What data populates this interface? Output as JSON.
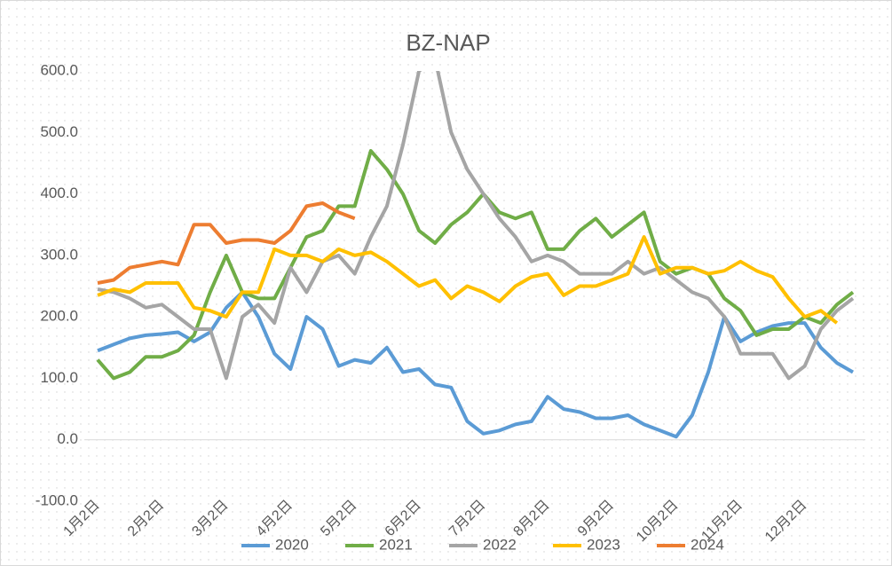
{
  "chart_data": {
    "type": "line",
    "title": "BZ-NAP",
    "categories": [
      "1月2日",
      null,
      null,
      null,
      "2月2日",
      null,
      null,
      null,
      "3月2日",
      null,
      null,
      null,
      "4月2日",
      null,
      null,
      null,
      "5月2日",
      null,
      null,
      null,
      "6月2日",
      null,
      null,
      null,
      "7月2日",
      null,
      null,
      null,
      "8月2日",
      null,
      null,
      null,
      "9月2日",
      null,
      null,
      null,
      "10月2日",
      null,
      null,
      null,
      "11月2日",
      null,
      null,
      null,
      "12月2日",
      null,
      null,
      null
    ],
    "series": [
      {
        "name": "2020",
        "color": "#5b9bd5",
        "values": [
          145,
          155,
          165,
          170,
          172,
          175,
          160,
          175,
          215,
          240,
          200,
          140,
          115,
          200,
          180,
          120,
          130,
          125,
          150,
          110,
          115,
          90,
          85,
          30,
          10,
          15,
          25,
          30,
          70,
          50,
          45,
          35,
          35,
          40,
          25,
          15,
          5,
          40,
          110,
          200,
          160,
          175,
          185,
          190,
          190,
          150,
          125,
          110
        ]
      },
      {
        "name": "2021",
        "color": "#70ad47",
        "values": [
          130,
          100,
          110,
          135,
          135,
          145,
          170,
          240,
          300,
          240,
          230,
          230,
          280,
          330,
          340,
          380,
          380,
          470,
          440,
          400,
          340,
          320,
          350,
          370,
          400,
          370,
          360,
          370,
          310,
          310,
          340,
          360,
          330,
          350,
          370,
          290,
          270,
          280,
          270,
          230,
          210,
          170,
          180,
          180,
          200,
          190,
          220,
          240
        ]
      },
      {
        "name": "2022",
        "color": "#a5a5a5",
        "values": [
          245,
          240,
          230,
          215,
          220,
          200,
          180,
          180,
          100,
          200,
          220,
          190,
          280,
          240,
          290,
          300,
          270,
          330,
          380,
          480,
          600,
          620,
          500,
          440,
          400,
          360,
          330,
          290,
          300,
          290,
          270,
          270,
          270,
          290,
          270,
          280,
          260,
          240,
          230,
          200,
          140,
          140,
          140,
          100,
          120,
          180,
          210,
          230
        ]
      },
      {
        "name": "2023",
        "color": "#ffc000",
        "values": [
          235,
          245,
          240,
          255,
          255,
          255,
          215,
          210,
          200,
          240,
          240,
          310,
          300,
          300,
          290,
          310,
          300,
          305,
          290,
          270,
          250,
          260,
          230,
          250,
          240,
          225,
          250,
          265,
          270,
          235,
          250,
          250,
          260,
          270,
          330,
          270,
          280,
          280,
          270,
          275,
          290,
          275,
          265,
          230,
          200,
          210,
          190,
          null
        ]
      },
      {
        "name": "2024",
        "color": "#ed7d31",
        "values": [
          255,
          260,
          280,
          285,
          290,
          285,
          350,
          350,
          320,
          325,
          325,
          320,
          340,
          380,
          385,
          370,
          360,
          null,
          null,
          null,
          null,
          null,
          null,
          null,
          null,
          null,
          null,
          null,
          null,
          null,
          null,
          null,
          null,
          null,
          null,
          null,
          null,
          null,
          null,
          null,
          null,
          null,
          null,
          null,
          null,
          null,
          null,
          null
        ]
      }
    ],
    "ylim": [
      -100,
      600
    ],
    "yticks": [
      {
        "value": -100,
        "label": "-100.0"
      },
      {
        "value": 0,
        "label": "0.0"
      },
      {
        "value": 100,
        "label": "100.0"
      },
      {
        "value": 200,
        "label": "200.0"
      },
      {
        "value": 300,
        "label": "300.0"
      },
      {
        "value": 400,
        "label": "400.0"
      },
      {
        "value": 500,
        "label": "500.0"
      },
      {
        "value": 600,
        "label": "600.0"
      }
    ],
    "legend": "bottom"
  }
}
